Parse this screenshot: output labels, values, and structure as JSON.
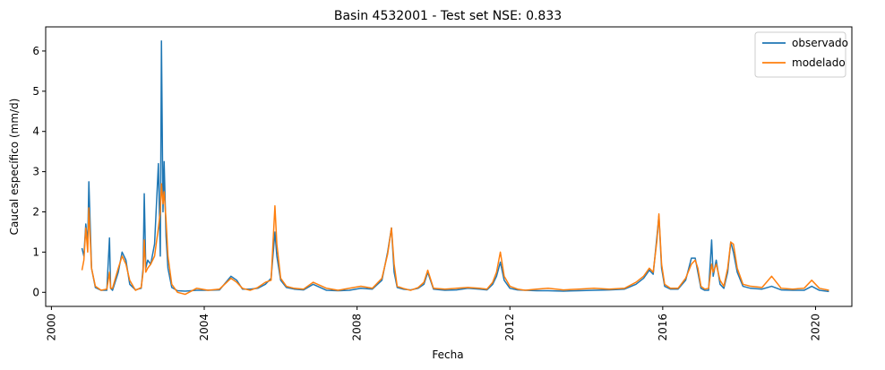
{
  "chart_data": {
    "type": "line",
    "title": "Basin 4532001 - Test set NSE: 0.833",
    "xlabel": "Fecha",
    "ylabel": "Caucal específico (mm/d)",
    "xlim": [
      1999.85,
      2020.95
    ],
    "ylim": [
      -0.35,
      6.6
    ],
    "xticks": [
      {
        "value": 2000,
        "label": "2000"
      },
      {
        "value": 2004,
        "label": "2004"
      },
      {
        "value": 2008,
        "label": "2008"
      },
      {
        "value": 2012,
        "label": "2012"
      },
      {
        "value": 2016,
        "label": "2016"
      },
      {
        "value": 2020,
        "label": "2020"
      }
    ],
    "yticks": [
      {
        "value": 0,
        "label": "0"
      },
      {
        "value": 1,
        "label": "1"
      },
      {
        "value": 2,
        "label": "2"
      },
      {
        "value": 3,
        "label": "3"
      },
      {
        "value": 4,
        "label": "4"
      },
      {
        "value": 5,
        "label": "5"
      },
      {
        "value": 6,
        "label": "6"
      }
    ],
    "grid": false,
    "legend_position": "top-right",
    "series": [
      {
        "name": "observado",
        "color": "#1f77b4",
        "x": [
          2000.8,
          2000.85,
          2000.9,
          2000.95,
          2000.98,
          2001.05,
          2001.15,
          2001.3,
          2001.45,
          2001.52,
          2001.55,
          2001.6,
          2001.75,
          2001.85,
          2001.95,
          2002.05,
          2002.2,
          2002.35,
          2002.4,
          2002.43,
          2002.47,
          2002.52,
          2002.6,
          2002.7,
          2002.8,
          2002.85,
          2002.88,
          2002.92,
          2002.95,
          2003.0,
          2003.05,
          2003.15,
          2003.3,
          2003.5,
          2003.8,
          2004.1,
          2004.4,
          2004.7,
          2004.85,
          2005.0,
          2005.2,
          2005.4,
          2005.6,
          2005.75,
          2005.85,
          2005.9,
          2006.0,
          2006.15,
          2006.35,
          2006.6,
          2006.85,
          2007.2,
          2007.5,
          2007.8,
          2008.1,
          2008.4,
          2008.65,
          2008.8,
          2008.9,
          2008.97,
          2009.05,
          2009.2,
          2009.4,
          2009.6,
          2009.75,
          2009.85,
          2010.0,
          2010.3,
          2010.6,
          2010.9,
          2011.2,
          2011.4,
          2011.55,
          2011.65,
          2011.75,
          2011.85,
          2012.0,
          2012.2,
          2012.4,
          2012.7,
          2013.0,
          2013.4,
          2013.8,
          2014.2,
          2014.6,
          2015.0,
          2015.3,
          2015.5,
          2015.65,
          2015.75,
          2015.85,
          2015.9,
          2015.97,
          2016.05,
          2016.2,
          2016.4,
          2016.6,
          2016.75,
          2016.85,
          2016.92,
          2017.0,
          2017.1,
          2017.2,
          2017.28,
          2017.32,
          2017.4,
          2017.5,
          2017.6,
          2017.7,
          2017.78,
          2017.85,
          2017.95,
          2018.1,
          2018.3,
          2018.6,
          2018.85,
          2019.1,
          2019.4,
          2019.7,
          2019.9,
          2020.1,
          2020.35
        ],
        "y": [
          1.1,
          0.9,
          1.7,
          1.2,
          2.75,
          0.6,
          0.12,
          0.05,
          0.05,
          1.35,
          0.1,
          0.05,
          0.5,
          1.0,
          0.8,
          0.2,
          0.06,
          0.1,
          0.6,
          2.45,
          0.6,
          0.8,
          0.7,
          1.2,
          3.2,
          0.9,
          6.25,
          2.0,
          3.25,
          1.4,
          0.6,
          0.12,
          0.04,
          0.03,
          0.05,
          0.05,
          0.06,
          0.4,
          0.3,
          0.08,
          0.08,
          0.1,
          0.2,
          0.35,
          1.5,
          0.9,
          0.3,
          0.12,
          0.08,
          0.06,
          0.2,
          0.05,
          0.04,
          0.05,
          0.1,
          0.08,
          0.3,
          1.0,
          1.6,
          0.5,
          0.12,
          0.08,
          0.06,
          0.1,
          0.2,
          0.5,
          0.08,
          0.05,
          0.06,
          0.1,
          0.08,
          0.06,
          0.2,
          0.4,
          0.75,
          0.3,
          0.1,
          0.06,
          0.05,
          0.04,
          0.04,
          0.03,
          0.04,
          0.05,
          0.06,
          0.08,
          0.2,
          0.35,
          0.55,
          0.45,
          1.4,
          1.9,
          0.6,
          0.15,
          0.08,
          0.08,
          0.3,
          0.85,
          0.85,
          0.5,
          0.1,
          0.05,
          0.05,
          1.3,
          0.4,
          0.8,
          0.2,
          0.1,
          0.5,
          1.25,
          1.0,
          0.5,
          0.15,
          0.1,
          0.08,
          0.15,
          0.06,
          0.05,
          0.05,
          0.15,
          0.05,
          0.02
        ]
      },
      {
        "name": "modelado",
        "color": "#ff7f0e",
        "x": [
          2000.8,
          2000.85,
          2000.9,
          2000.95,
          2000.98,
          2001.05,
          2001.15,
          2001.3,
          2001.45,
          2001.52,
          2001.55,
          2001.6,
          2001.75,
          2001.85,
          2001.95,
          2002.05,
          2002.2,
          2002.35,
          2002.4,
          2002.43,
          2002.47,
          2002.52,
          2002.6,
          2002.7,
          2002.8,
          2002.85,
          2002.88,
          2002.92,
          2002.95,
          2003.0,
          2003.05,
          2003.15,
          2003.3,
          2003.5,
          2003.8,
          2004.1,
          2004.4,
          2004.7,
          2004.85,
          2005.0,
          2005.2,
          2005.4,
          2005.6,
          2005.75,
          2005.85,
          2005.9,
          2006.0,
          2006.15,
          2006.35,
          2006.6,
          2006.85,
          2007.2,
          2007.5,
          2007.8,
          2008.1,
          2008.4,
          2008.65,
          2008.8,
          2008.9,
          2008.97,
          2009.05,
          2009.2,
          2009.4,
          2009.6,
          2009.75,
          2009.85,
          2010.0,
          2010.3,
          2010.6,
          2010.9,
          2011.2,
          2011.4,
          2011.55,
          2011.65,
          2011.75,
          2011.85,
          2012.0,
          2012.2,
          2012.4,
          2012.7,
          2013.0,
          2013.4,
          2013.8,
          2014.2,
          2014.6,
          2015.0,
          2015.3,
          2015.5,
          2015.65,
          2015.75,
          2015.85,
          2015.9,
          2015.97,
          2016.05,
          2016.2,
          2016.4,
          2016.6,
          2016.75,
          2016.85,
          2016.92,
          2017.0,
          2017.1,
          2017.2,
          2017.28,
          2017.32,
          2017.4,
          2017.5,
          2017.6,
          2017.7,
          2017.78,
          2017.85,
          2017.95,
          2018.1,
          2018.3,
          2018.6,
          2018.85,
          2019.1,
          2019.4,
          2019.7,
          2019.9,
          2020.1,
          2020.35
        ],
        "y": [
          0.55,
          0.8,
          1.6,
          1.0,
          2.1,
          0.6,
          0.15,
          0.05,
          0.08,
          0.5,
          0.1,
          0.1,
          0.6,
          0.9,
          0.7,
          0.3,
          0.05,
          0.12,
          0.5,
          1.3,
          0.5,
          0.6,
          0.7,
          0.9,
          1.6,
          2.0,
          2.7,
          2.2,
          2.5,
          1.8,
          0.9,
          0.2,
          0.0,
          -0.05,
          0.1,
          0.05,
          0.08,
          0.35,
          0.25,
          0.1,
          0.05,
          0.12,
          0.25,
          0.3,
          2.15,
          1.2,
          0.35,
          0.15,
          0.1,
          0.08,
          0.25,
          0.1,
          0.05,
          0.1,
          0.15,
          0.1,
          0.35,
          0.95,
          1.6,
          0.7,
          0.15,
          0.1,
          0.05,
          0.12,
          0.25,
          0.55,
          0.1,
          0.08,
          0.1,
          0.12,
          0.1,
          0.08,
          0.25,
          0.5,
          1.0,
          0.4,
          0.15,
          0.08,
          0.05,
          0.08,
          0.1,
          0.06,
          0.08,
          0.1,
          0.08,
          0.1,
          0.25,
          0.4,
          0.6,
          0.5,
          1.3,
          1.95,
          0.7,
          0.2,
          0.1,
          0.1,
          0.35,
          0.7,
          0.8,
          0.6,
          0.15,
          0.08,
          0.1,
          0.7,
          0.5,
          0.7,
          0.3,
          0.15,
          0.6,
          1.25,
          1.2,
          0.6,
          0.2,
          0.15,
          0.12,
          0.4,
          0.1,
          0.08,
          0.1,
          0.3,
          0.1,
          0.05
        ]
      }
    ]
  }
}
